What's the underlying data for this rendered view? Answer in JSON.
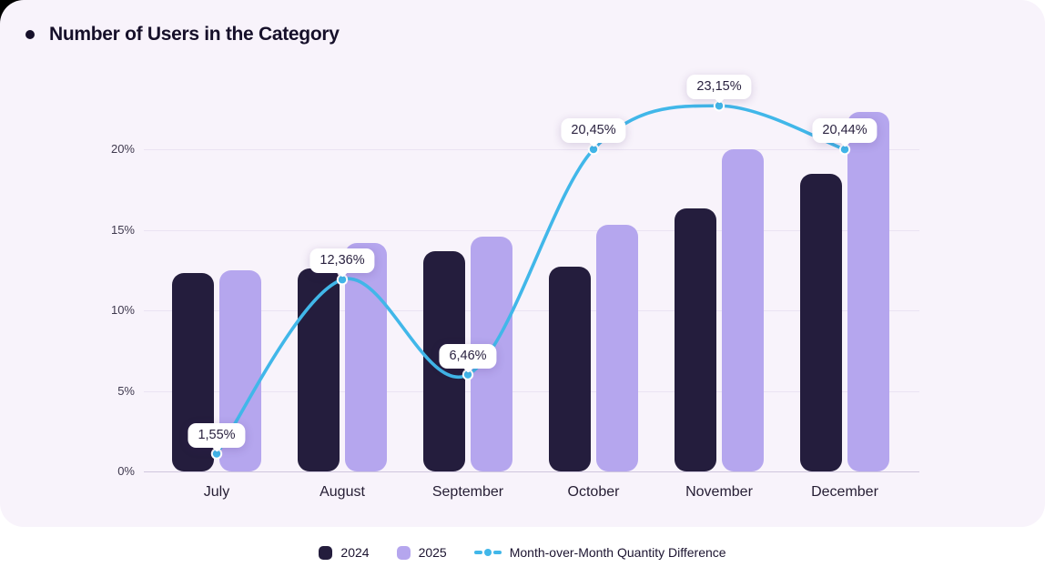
{
  "header": {
    "title": "Number of Users in the Category"
  },
  "legend": {
    "items": [
      {
        "label": "2024",
        "type": "swatch",
        "color": "#241d3d"
      },
      {
        "label": "2025",
        "type": "swatch",
        "color": "#b5a6ee"
      },
      {
        "label": "Month-over-Month Quantity Difference",
        "type": "line",
        "color": "#41b7e9"
      }
    ]
  },
  "chart_data": {
    "type": "bar",
    "title": "Number of Users in the Category",
    "categories": [
      "July",
      "August",
      "September",
      "October",
      "November",
      "December"
    ],
    "series": [
      {
        "name": "2024",
        "color": "#241d3d",
        "values": [
          12.3,
          12.6,
          13.7,
          12.7,
          16.3,
          18.5
        ]
      },
      {
        "name": "2025",
        "color": "#b5a6ee",
        "values": [
          12.5,
          14.2,
          14.6,
          15.3,
          20.0,
          22.3
        ]
      }
    ],
    "line_series": {
      "name": "Month-over-Month Quantity Difference",
      "type": "line",
      "color": "#41b7e9",
      "values": [
        1.55,
        12.36,
        6.46,
        20.45,
        23.15,
        20.44
      ],
      "point_labels": [
        "1,55%",
        "12,36%",
        "6,46%",
        "20,45%",
        "23,15%",
        "20,44%"
      ]
    },
    "y_axis": {
      "tick_labels": [
        "0%",
        "5%",
        "10%",
        "15%",
        "20%"
      ],
      "tick_values": [
        0,
        5,
        10,
        15,
        20
      ],
      "ylim": [
        0,
        25
      ]
    },
    "grid": true,
    "legend_position": "bottom"
  },
  "colors": {
    "card_bg": "#f8f3fb",
    "grid": "#eae3f3",
    "baseline": "#cfc6de",
    "bar_2024": "#241d3d",
    "bar_2025": "#b5a6ee",
    "line": "#41b7e9",
    "pill_bg": "#ffffff",
    "text_dark": "#16102a"
  }
}
